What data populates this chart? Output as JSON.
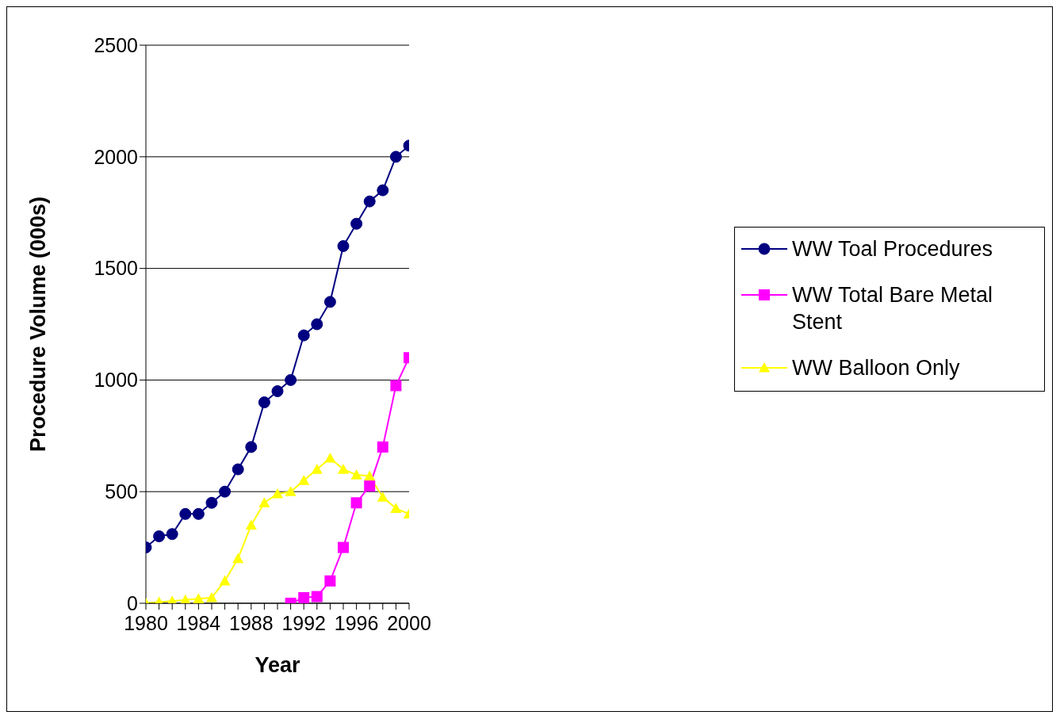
{
  "chart_data": {
    "type": "line",
    "xlabel": "Year",
    "ylabel": "Procedure Volume (000s)",
    "x": [
      1980,
      1981,
      1982,
      1983,
      1984,
      1985,
      1986,
      1987,
      1988,
      1989,
      1990,
      1991,
      1992,
      1993,
      1994,
      1995,
      1996,
      1997,
      1998,
      1999,
      2000
    ],
    "series": [
      {
        "name": "WW Toal Procedures",
        "color": "#000080",
        "marker": "circle",
        "values": [
          250,
          300,
          310,
          400,
          400,
          450,
          500,
          600,
          700,
          900,
          950,
          1000,
          1200,
          1250,
          1350,
          1600,
          1700,
          1800,
          1850,
          2000,
          2050
        ]
      },
      {
        "name": "WW Total Bare Metal Stent",
        "color": "#ff00ff",
        "marker": "square",
        "values": [
          null,
          null,
          null,
          null,
          null,
          null,
          null,
          null,
          null,
          null,
          null,
          0,
          25,
          30,
          100,
          250,
          450,
          525,
          700,
          975,
          1100
        ]
      },
      {
        "name": "WW Balloon Only",
        "color": "#ffff00",
        "marker": "triangle",
        "values": [
          0,
          5,
          10,
          15,
          20,
          25,
          100,
          200,
          350,
          450,
          490,
          500,
          550,
          600,
          650,
          600,
          575,
          570,
          475,
          425,
          400
        ]
      }
    ],
    "xlim": [
      1980,
      2000
    ],
    "xticks": [
      1980,
      {
        "value": 1981,
        "label": null
      },
      {
        "value": 1982,
        "label": null
      },
      {
        "value": 1983,
        "label": null
      },
      1984,
      {
        "value": 1985,
        "label": null
      },
      {
        "value": 1986,
        "label": null
      },
      {
        "value": 1987,
        "label": null
      },
      1988,
      {
        "value": 1989,
        "label": null
      },
      {
        "value": 1990,
        "label": null
      },
      {
        "value": 1991,
        "label": null
      },
      1992,
      {
        "value": 1993,
        "label": null
      },
      {
        "value": 1994,
        "label": null
      },
      {
        "value": 1995,
        "label": null
      },
      1996,
      {
        "value": 1997,
        "label": null
      },
      {
        "value": 1998,
        "label": null
      },
      {
        "value": 1999,
        "label": null
      },
      2000
    ],
    "ylim": [
      0,
      2500
    ],
    "yticks": [
      0,
      500,
      1000,
      1500,
      2000,
      2500
    ],
    "grid": "y",
    "legend": "right",
    "line_style": "solid"
  }
}
